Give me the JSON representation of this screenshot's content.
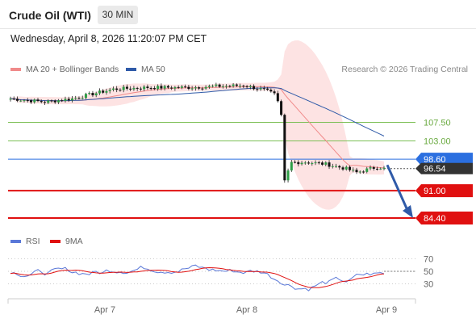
{
  "header": {
    "instrument_title": "Crude Oil (WTI)",
    "timeframe_label": "30 MIN",
    "datetime": "Wednesday, April 8, 2026 11:20:07 PM CET"
  },
  "price_legend": {
    "ma20_label": "MA 20 + Bollinger Bands",
    "ma20_color": "#f08a8a",
    "ma50_label": "MA 50",
    "ma50_color": "#2f5aa8"
  },
  "copyright": "Research © 2026 Trading Central",
  "rsi_legend": {
    "rsi_label": "RSI",
    "rsi_color": "#5a78d8",
    "ma_label": "9MA",
    "ma_color": "#e01010"
  },
  "chart_data": [
    {
      "type": "candlestick",
      "ylim": [
        80.5,
        118.5
      ],
      "levels": [
        {
          "value": 107.5,
          "label": "107.50",
          "style": "resistance",
          "color": "#7cbf55"
        },
        {
          "value": 103.0,
          "label": "103.00",
          "style": "resistance",
          "color": "#7cbf55"
        },
        {
          "value": 98.6,
          "label": "98.60",
          "style": "pivot",
          "color": "#2b6fe0"
        },
        {
          "value": 91.0,
          "label": "91.00",
          "style": "support",
          "color": "#e01010"
        },
        {
          "value": 84.4,
          "label": "84.40",
          "style": "support",
          "color": "#e01010"
        }
      ],
      "last_price": {
        "value": 96.54,
        "label": "96.54",
        "color": "#333333"
      },
      "projection": {
        "from": 97.2,
        "to": 84.4,
        "color": "#2f5aa8"
      }
    },
    {
      "type": "line",
      "name": "RSI",
      "ylim": [
        10,
        90
      ],
      "y_ticks": [
        70,
        50,
        30
      ],
      "x_ticks": [
        "Apr 7",
        "Apr 8",
        "Apr 9"
      ]
    }
  ]
}
